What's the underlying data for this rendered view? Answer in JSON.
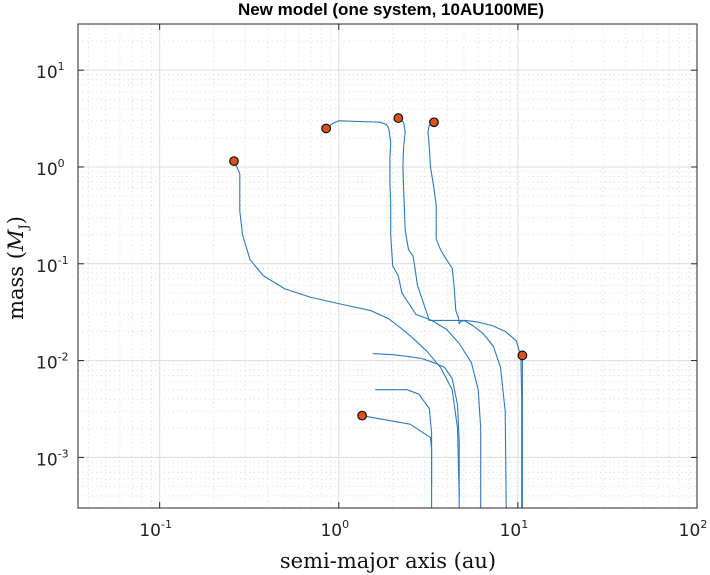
{
  "chart_data": {
    "type": "line",
    "title": "New model (one system, 10AU100ME)",
    "xlabel": "semi-major axis (au)",
    "ylabel": "mass",
    "ylabel_unit_symbol": "M",
    "ylabel_unit_subscript": "J",
    "x_scale": "log",
    "y_scale": "log",
    "xlim": [
      0.035,
      100
    ],
    "ylim": [
      0.0003,
      30
    ],
    "grid": true,
    "x_ticks": [
      {
        "base": "10",
        "exp": "-1",
        "value": 0.1
      },
      {
        "base": "10",
        "exp": "0",
        "value": 1
      },
      {
        "base": "10",
        "exp": "1",
        "value": 10
      },
      {
        "base": "10",
        "exp": "2",
        "value": 100
      }
    ],
    "y_ticks": [
      {
        "base": "10",
        "exp": "-3",
        "value": 0.001
      },
      {
        "base": "10",
        "exp": "-2",
        "value": 0.01
      },
      {
        "base": "10",
        "exp": "-1",
        "value": 0.1
      },
      {
        "base": "10",
        "exp": "0",
        "value": 1
      },
      {
        "base": "10",
        "exp": "1",
        "value": 10
      }
    ],
    "colors": {
      "tracks": "#2b7bbf",
      "final_position_marker": "#d95319"
    },
    "series": [
      {
        "points": [
          [
            3.3,
            0.0003
          ],
          [
            3.3,
            0.0012
          ],
          [
            3.25,
            0.0016
          ],
          [
            2.5,
            0.0022
          ],
          [
            1.7,
            0.0025
          ],
          [
            1.35,
            0.0027
          ]
        ]
      },
      {
        "points": [
          [
            3.3,
            0.0005
          ],
          [
            3.3,
            0.0018
          ],
          [
            3.2,
            0.0032
          ],
          [
            2.8,
            0.0045
          ],
          [
            2.4,
            0.005
          ],
          [
            1.6,
            0.005
          ]
        ]
      },
      {
        "points": [
          [
            4.7,
            0.0003
          ],
          [
            4.7,
            0.0015
          ],
          [
            4.6,
            0.0035
          ],
          [
            4.3,
            0.0065
          ],
          [
            3.9,
            0.0085
          ],
          [
            3.4,
            0.0095
          ],
          [
            2.9,
            0.0105
          ],
          [
            2.45,
            0.011
          ],
          [
            2.0,
            0.0115
          ],
          [
            1.55,
            0.0118
          ]
        ]
      },
      {
        "points": [
          [
            4.7,
            0.0004
          ],
          [
            4.6,
            0.002
          ],
          [
            4.3,
            0.005
          ],
          [
            3.7,
            0.0085
          ],
          [
            3.1,
            0.0125
          ],
          [
            2.6,
            0.017
          ],
          [
            2.2,
            0.022
          ],
          [
            1.9,
            0.027
          ],
          [
            1.5,
            0.033
          ],
          [
            1.05,
            0.038
          ],
          [
            0.7,
            0.045
          ],
          [
            0.5,
            0.055
          ],
          [
            0.38,
            0.075
          ],
          [
            0.32,
            0.11
          ],
          [
            0.29,
            0.2
          ],
          [
            0.28,
            0.35
          ],
          [
            0.28,
            0.6
          ],
          [
            0.28,
            0.85
          ],
          [
            0.27,
            1.0
          ],
          [
            0.26,
            1.15
          ]
        ]
      },
      {
        "points": [
          [
            6.2,
            0.0003
          ],
          [
            6.2,
            0.002
          ],
          [
            6.0,
            0.005
          ],
          [
            5.5,
            0.0095
          ],
          [
            4.7,
            0.015
          ],
          [
            4.0,
            0.021
          ],
          [
            3.3,
            0.026
          ],
          [
            2.7,
            0.03
          ],
          [
            2.25,
            0.05
          ],
          [
            2.15,
            0.075
          ],
          [
            2.0,
            0.095
          ],
          [
            1.95,
            0.2
          ],
          [
            1.95,
            0.42
          ],
          [
            1.93,
            0.7
          ],
          [
            1.93,
            1.2
          ],
          [
            1.95,
            1.8
          ],
          [
            1.9,
            2.5
          ],
          [
            1.85,
            2.75
          ],
          [
            1.7,
            2.9
          ],
          [
            1.3,
            2.95
          ],
          [
            1.0,
            3.0
          ],
          [
            0.92,
            2.8
          ],
          [
            0.85,
            2.5
          ]
        ]
      },
      {
        "points": [
          [
            8.6,
            0.0003
          ],
          [
            8.5,
            0.003
          ],
          [
            8.0,
            0.0085
          ],
          [
            7.3,
            0.014
          ],
          [
            6.4,
            0.019
          ],
          [
            5.6,
            0.023
          ],
          [
            5.0,
            0.026
          ],
          [
            4.75,
            0.025
          ],
          [
            4.7,
            0.024
          ],
          [
            4.65,
            0.028
          ],
          [
            4.5,
            0.033
          ],
          [
            4.4,
            0.06
          ],
          [
            4.3,
            0.09
          ],
          [
            4.0,
            0.11
          ],
          [
            3.7,
            0.14
          ],
          [
            3.5,
            0.18
          ],
          [
            3.5,
            0.4
          ],
          [
            3.4,
            0.6
          ],
          [
            3.25,
            1.0
          ],
          [
            3.2,
            1.6
          ],
          [
            3.15,
            2.3
          ],
          [
            3.2,
            2.7
          ],
          [
            3.3,
            2.85
          ],
          [
            3.4,
            2.9
          ]
        ]
      },
      {
        "points": [
          [
            10.5,
            0.0003
          ],
          [
            10.5,
            0.004
          ],
          [
            10.4,
            0.011
          ],
          [
            9.8,
            0.016
          ],
          [
            8.5,
            0.02
          ],
          [
            7.2,
            0.023
          ],
          [
            6.0,
            0.025
          ],
          [
            5.1,
            0.026
          ],
          [
            4.6,
            0.026
          ],
          [
            3.7,
            0.026
          ],
          [
            3.2,
            0.026
          ],
          [
            2.75,
            0.06
          ],
          [
            2.6,
            0.12
          ],
          [
            2.45,
            0.14
          ],
          [
            2.35,
            0.22
          ],
          [
            2.3,
            0.6
          ],
          [
            2.28,
            1.0
          ],
          [
            2.3,
            1.6
          ],
          [
            2.35,
            2.3
          ],
          [
            2.3,
            2.9
          ],
          [
            2.2,
            3.1
          ],
          [
            2.15,
            3.2
          ]
        ]
      },
      {
        "points": [
          [
            10.6,
            0.0003
          ],
          [
            10.6,
            0.0011
          ],
          [
            10.6,
            0.003
          ],
          [
            10.6,
            0.006
          ],
          [
            10.6,
            0.009
          ],
          [
            10.6,
            0.0113
          ]
        ]
      }
    ],
    "final_positions": [
      {
        "x": 0.26,
        "y": 1.15
      },
      {
        "x": 0.85,
        "y": 2.5
      },
      {
        "x": 2.15,
        "y": 3.2
      },
      {
        "x": 3.4,
        "y": 2.9
      },
      {
        "x": 10.6,
        "y": 0.0113
      },
      {
        "x": 1.35,
        "y": 0.0027
      }
    ]
  }
}
